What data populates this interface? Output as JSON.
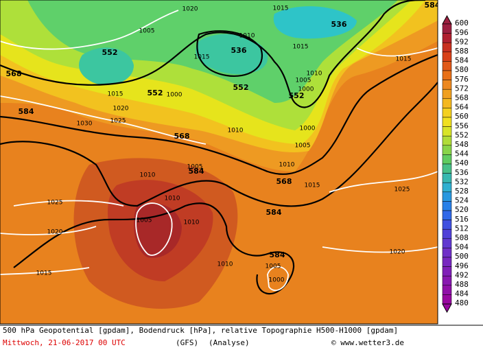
{
  "map": {
    "geopotential_labels": [
      552,
      552,
      536,
      552,
      552,
      536,
      568,
      584,
      568,
      584,
      568,
      584,
      584,
      584
    ],
    "pressure_labels": [
      1020,
      1015,
      1005,
      1010,
      1015,
      1015,
      1010,
      1005,
      1000,
      1000,
      1015,
      1020,
      1025,
      1030,
      1010,
      1000,
      1005,
      1010,
      1005,
      1010,
      1015,
      1025,
      1025,
      1010,
      1005,
      1010,
      1020,
      1010,
      1005,
      1000,
      1015,
      1020,
      1015
    ],
    "colorbar": [
      600,
      596,
      592,
      588,
      584,
      580,
      576,
      572,
      568,
      564,
      560,
      556,
      552,
      548,
      544,
      540,
      536,
      532,
      528,
      524,
      520,
      516,
      512,
      508,
      504,
      500,
      496,
      492,
      488,
      484,
      480
    ]
  },
  "footer": {
    "description": "500 hPa Geopotential [gpdam], Bodendruck [hPa], relative Topographie H500-H1000 [gpdam]",
    "date": "Mittwoch, 21-06-2017  00 UTC",
    "model": "(GFS)",
    "run": "(Analyse)",
    "credit": "© www.wetter3.de"
  }
}
